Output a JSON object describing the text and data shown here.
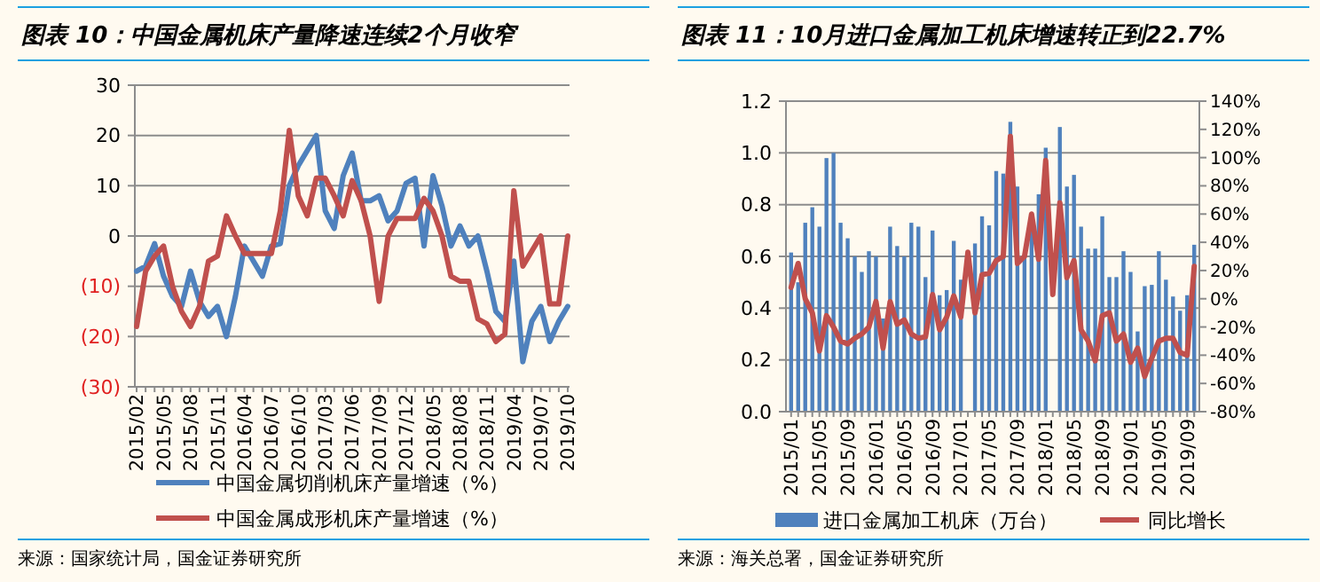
{
  "chart_data": [
    {
      "type": "line",
      "title": "图表 10：中国金属机床产量降速连续2个月收窄",
      "categories": [
        "2015/02",
        null,
        null,
        "2015/05",
        null,
        null,
        "2015/08",
        null,
        null,
        "2015/11",
        null,
        null,
        "2016/04",
        null,
        null,
        "2016/07",
        null,
        null,
        "2016/10",
        null,
        null,
        "2017/03",
        null,
        null,
        "2017/06",
        null,
        null,
        "2017/09",
        null,
        null,
        "2017/12",
        null,
        null,
        "2018/05",
        null,
        null,
        "2018/08",
        null,
        null,
        "2018/11",
        null,
        null,
        "2019/04",
        null,
        null,
        "2019/07",
        null,
        null,
        "2019/10"
      ],
      "series": [
        {
          "name": "中国金属切削机床产量增速（%）",
          "color": "#4f81bd",
          "values": [
            -7,
            -6,
            -1.5,
            -8,
            -12,
            -14,
            -7,
            -13,
            -16,
            -14,
            -20,
            -12,
            -2,
            -5,
            -8,
            -2,
            -1.5,
            10,
            14,
            17,
            20,
            5,
            1.5,
            12,
            16.5,
            7,
            7,
            8,
            3,
            5,
            10.5,
            11.5,
            -2,
            12,
            6,
            -2,
            2,
            -2,
            0,
            -7,
            -15,
            -17,
            -5,
            -25,
            -17,
            -14,
            -21,
            -17,
            -14
          ]
        },
        {
          "name": "中国金属成形机床产量增速（%）",
          "color": "#c0504d",
          "values": [
            -18,
            -7,
            -4,
            -2,
            -10,
            -15,
            -18,
            -14,
            -5,
            -4,
            4,
            0,
            -3.5,
            -3.5,
            -3.5,
            -3.5,
            5,
            21,
            8,
            4,
            11.5,
            11.5,
            8,
            4,
            11,
            7,
            0,
            -13,
            0,
            3.5,
            3.5,
            3.5,
            7.5,
            5,
            0,
            -8,
            -9,
            -9,
            -16.5,
            -17.5,
            -21,
            -19.5,
            9,
            -6,
            -3,
            0,
            -13.5,
            -13.5,
            0
          ]
        }
      ],
      "ylim": [
        -30,
        30
      ],
      "yticks": [
        {
          "value": -30,
          "label": "(30)"
        },
        {
          "value": -20,
          "label": "(20)"
        },
        {
          "value": -10,
          "label": "(10)"
        },
        0,
        10,
        20,
        30
      ],
      "grid": "y",
      "legend": "bottom",
      "annotations": [
        "来源：国家统计局，国金证券研究所"
      ]
    },
    {
      "type": "bar",
      "title": "图表 11：10月进口金属加工机床增速转正到22.7%",
      "categories": [
        "2015/01",
        null,
        null,
        null,
        "2015/05",
        null,
        null,
        null,
        "2015/09",
        null,
        null,
        null,
        "2016/01",
        null,
        null,
        null,
        "2016/05",
        null,
        null,
        null,
        "2016/09",
        null,
        null,
        null,
        "2017/01",
        null,
        null,
        null,
        "2017/05",
        null,
        null,
        null,
        "2017/09",
        null,
        null,
        null,
        "2018/01",
        null,
        null,
        null,
        "2018/05",
        null,
        null,
        null,
        "2018/09",
        null,
        null,
        null,
        "2019/01",
        null,
        null,
        null,
        "2019/05",
        null,
        null,
        null,
        "2019/09",
        null
      ],
      "series": [
        {
          "name": "进口金属加工机床（万台）",
          "type": "bar",
          "color": "#4f81bd",
          "values": [
            0.615,
            0.5,
            0.73,
            0.79,
            0.715,
            0.98,
            1.0,
            0.73,
            0.67,
            0.6,
            0.54,
            0.62,
            0.6,
            0.36,
            0.715,
            0.64,
            0.6,
            0.73,
            0.715,
            0.52,
            0.7,
            0.45,
            0.47,
            0.66,
            0.51,
            null,
            0.65,
            0.755,
            0.72,
            0.93,
            0.92,
            1.12,
            0.87,
            0.6,
            0.7,
            0.84,
            1.02,
            null,
            1.1,
            0.87,
            0.915,
            0.715,
            0.63,
            0.63,
            0.755,
            0.52,
            0.52,
            0.62,
            0.54,
            0.31,
            0.485,
            0.49,
            0.62,
            0.51,
            0.445,
            0.39,
            0.45,
            0.645
          ]
        },
        {
          "name": "同比增长",
          "type": "line",
          "axis": "y2",
          "color": "#c0504d",
          "values": [
            8,
            25,
            0,
            -10,
            -37,
            -12,
            -20,
            -30,
            -32,
            -28,
            -25,
            -20,
            -2,
            -35,
            -2,
            -18,
            -15,
            -25,
            -28,
            -27,
            3,
            -22,
            -13,
            2,
            -13,
            33,
            -10,
            17,
            18,
            27,
            30,
            115,
            25,
            30,
            60,
            28,
            98,
            3,
            68,
            15,
            27,
            -22,
            -30,
            -44,
            -12,
            -10,
            -30,
            -25,
            -45,
            -35,
            -55,
            -42,
            -30,
            -28,
            -28,
            -38,
            -40,
            23
          ]
        }
      ],
      "ylim": [
        0,
        1.2
      ],
      "yticks": [
        {
          "value": 0,
          "label": "0.0"
        },
        {
          "value": 0.2,
          "label": "0.2"
        },
        {
          "value": 0.4,
          "label": "0.4"
        },
        {
          "value": 0.6,
          "label": "0.6"
        },
        {
          "value": 0.8,
          "label": "0.8"
        },
        {
          "value": 1,
          "label": "1.0"
        },
        {
          "value": 1.2,
          "label": "1.2"
        }
      ],
      "y2lim": [
        -80,
        140
      ],
      "y2ticks": [
        {
          "value": -80,
          "label": "-80%"
        },
        {
          "value": -60,
          "label": "-60%"
        },
        {
          "value": -40,
          "label": "-40%"
        },
        {
          "value": -20,
          "label": "-20%"
        },
        {
          "value": 0,
          "label": "0%"
        },
        {
          "value": 20,
          "label": "20%"
        },
        {
          "value": 40,
          "label": "40%"
        },
        {
          "value": 60,
          "label": "60%"
        },
        {
          "value": 80,
          "label": "80%"
        },
        {
          "value": 100,
          "label": "100%"
        },
        {
          "value": 120,
          "label": "120%"
        },
        {
          "value": 140,
          "label": "140%"
        }
      ],
      "grid": "y",
      "legend": "bottom",
      "annotations": [
        "来源：海关总署，国金证券研究所"
      ]
    }
  ]
}
